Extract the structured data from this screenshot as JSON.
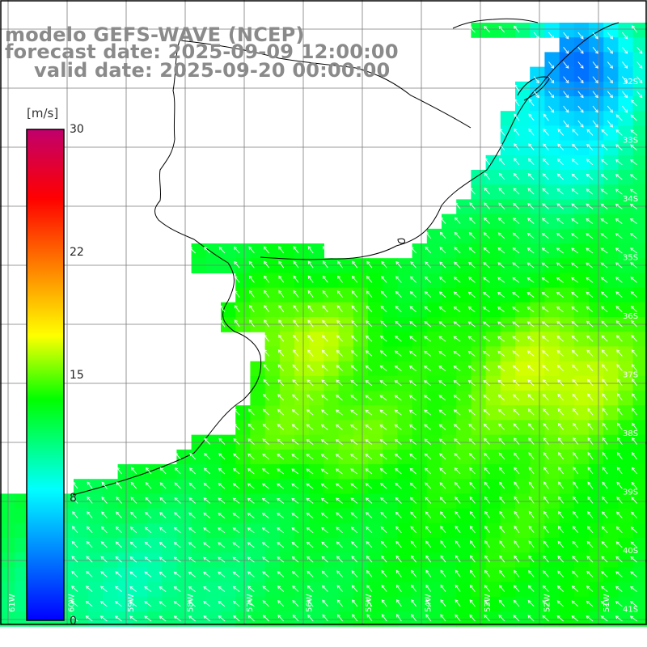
{
  "title": {
    "line1": "modelo GEFS-WAVE (NCEP)",
    "line2": "forecast date: 2025-09-09 12:00:00",
    "line3": "valid date: 2025-09-20 00:00:00"
  },
  "colorbar": {
    "units": "[m/s]",
    "ticks": [
      "30",
      "22",
      "15",
      "8",
      "0"
    ],
    "min": 0,
    "max": 30,
    "colors": [
      "#0000ff",
      "#00ffff",
      "#00ff00",
      "#ffff00",
      "#ff8000",
      "#ff0000",
      "#c0006c"
    ]
  },
  "map": {
    "lat_labels": [
      "32S",
      "33S",
      "34S",
      "35S",
      "36S",
      "37S",
      "38S",
      "39S",
      "40S",
      "41S"
    ],
    "lon_labels": [
      "61W",
      "60W",
      "59W",
      "58W",
      "57W",
      "56W",
      "55W",
      "54W",
      "53W",
      "52W",
      "51W"
    ],
    "field": "wind speed with wind direction arrows"
  }
}
